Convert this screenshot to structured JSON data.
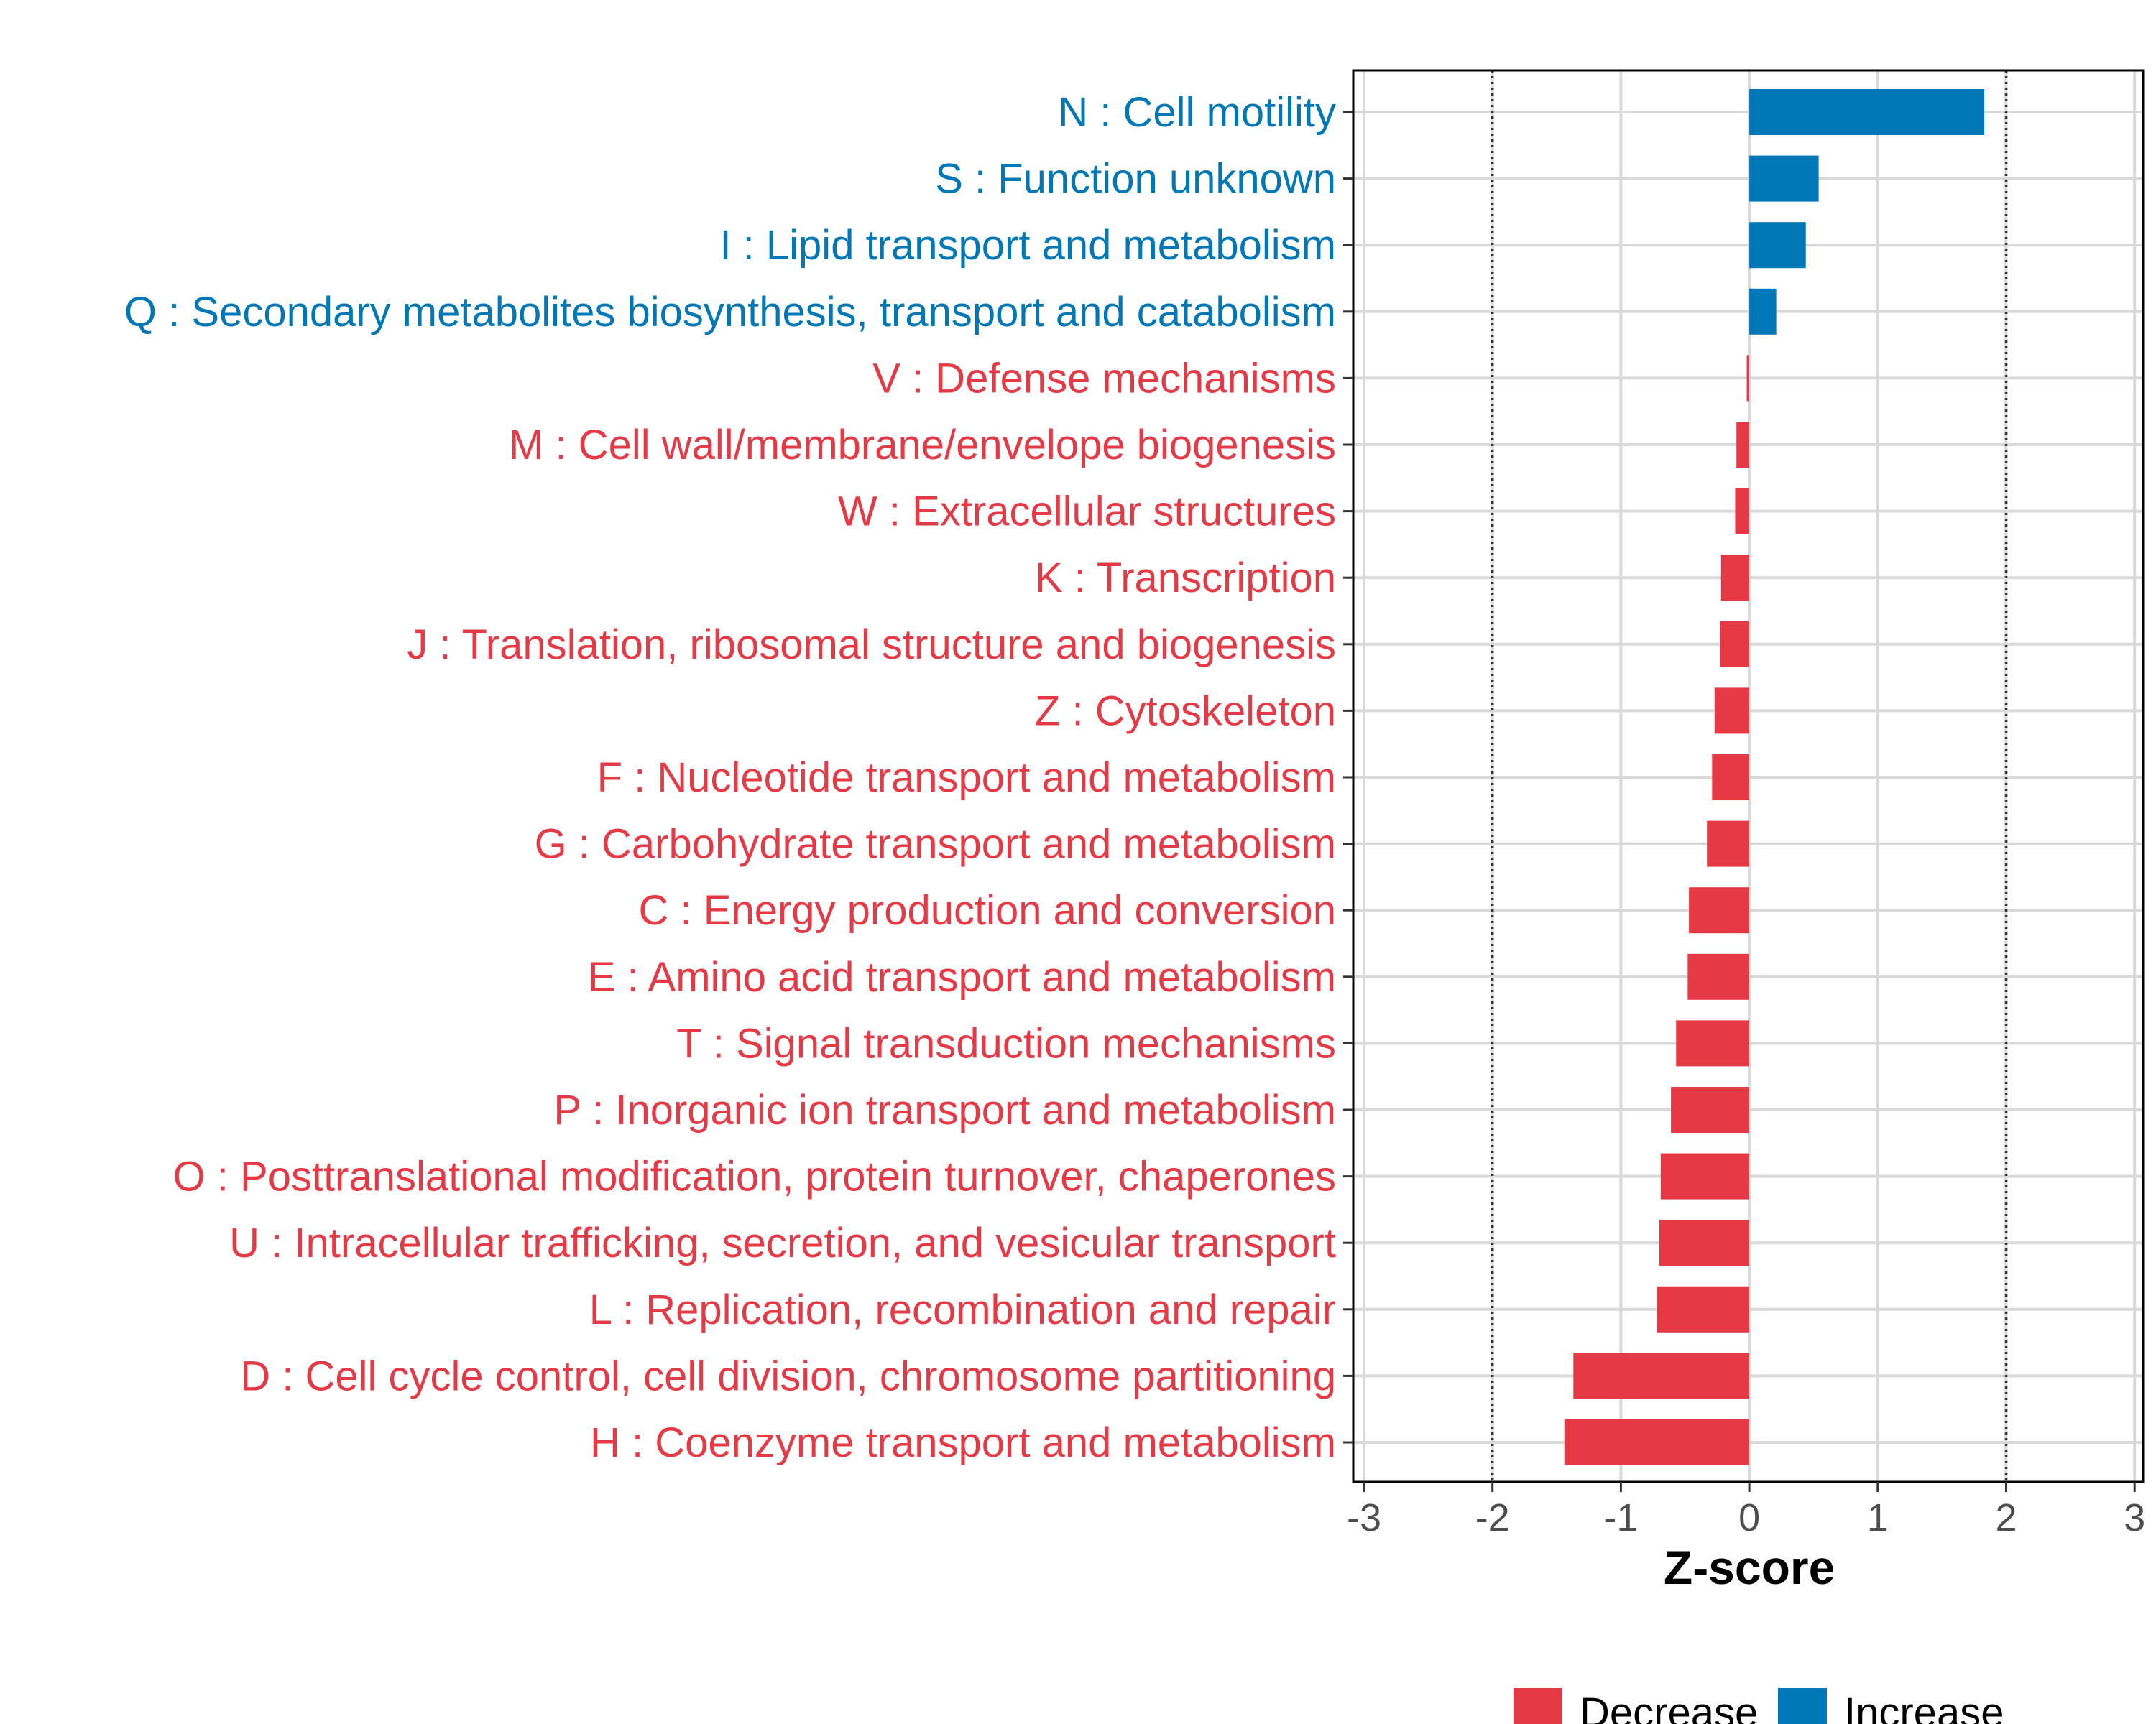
{
  "chart_data": {
    "type": "bar",
    "orientation": "horizontal",
    "xlabel": "Z-score",
    "ylabel": "",
    "xlim": [
      -3,
      3
    ],
    "xticks": [
      -3,
      -2,
      -1,
      0,
      1,
      2,
      3
    ],
    "xtick_labels": [
      "-3",
      "-2",
      "-1",
      "0",
      "1",
      "2",
      "3"
    ],
    "reference_lines": [
      -2,
      2
    ],
    "grid": true,
    "legend": {
      "placement": "bottom",
      "items": [
        {
          "label": "Decrease",
          "color": "#E63946"
        },
        {
          "label": "Increase",
          "color": "#0077B6"
        }
      ]
    },
    "categories": [
      {
        "label": "N : Cell motility",
        "value": 1.83,
        "group": "Increase"
      },
      {
        "label": "S : Function unknown",
        "value": 0.54,
        "group": "Increase"
      },
      {
        "label": "I : Lipid transport and metabolism",
        "value": 0.44,
        "group": "Increase"
      },
      {
        "label": "Q : Secondary metabolites biosynthesis, transport and catabolism",
        "value": 0.21,
        "group": "Increase"
      },
      {
        "label": "V : Defense mechanisms",
        "value": -0.02,
        "group": "Decrease"
      },
      {
        "label": "M : Cell wall/membrane/envelope biogenesis",
        "value": -0.1,
        "group": "Decrease"
      },
      {
        "label": "W : Extracellular structures",
        "value": -0.11,
        "group": "Decrease"
      },
      {
        "label": "K : Transcription",
        "value": -0.22,
        "group": "Decrease"
      },
      {
        "label": "J : Translation, ribosomal structure and biogenesis",
        "value": -0.23,
        "group": "Decrease"
      },
      {
        "label": "Z : Cytoskeleton",
        "value": -0.27,
        "group": "Decrease"
      },
      {
        "label": "F : Nucleotide transport and metabolism",
        "value": -0.29,
        "group": "Decrease"
      },
      {
        "label": "G : Carbohydrate transport and metabolism",
        "value": -0.33,
        "group": "Decrease"
      },
      {
        "label": "C : Energy production and conversion",
        "value": -0.47,
        "group": "Decrease"
      },
      {
        "label": "E : Amino acid transport and metabolism",
        "value": -0.48,
        "group": "Decrease"
      },
      {
        "label": "T : Signal transduction mechanisms",
        "value": -0.57,
        "group": "Decrease"
      },
      {
        "label": "P : Inorganic ion transport and metabolism",
        "value": -0.61,
        "group": "Decrease"
      },
      {
        "label": "O : Posttranslational modification, protein turnover, chaperones",
        "value": -0.69,
        "group": "Decrease"
      },
      {
        "label": "U : Intracellular trafficking, secretion, and vesicular transport",
        "value": -0.7,
        "group": "Decrease"
      },
      {
        "label": "L : Replication, recombination and repair",
        "value": -0.72,
        "group": "Decrease"
      },
      {
        "label": "D : Cell cycle control, cell division, chromosome partitioning",
        "value": -1.37,
        "group": "Decrease"
      },
      {
        "label": "H : Coenzyme transport and metabolism",
        "value": -1.44,
        "group": "Decrease"
      }
    ]
  }
}
